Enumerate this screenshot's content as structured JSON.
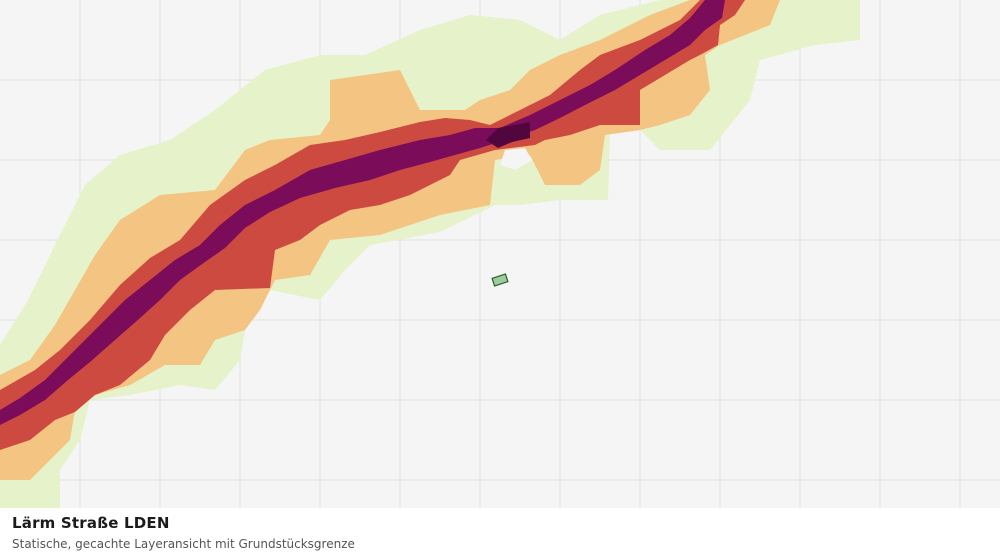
{
  "map": {
    "title": "Lärm Straße LDEN",
    "subtitle": "Statische, gecachte Layeransicht mit Grundstücksgrenze",
    "layer_type": "noise-map",
    "noise_classes": [
      {
        "key": "band-1",
        "color": "#e6f2c9"
      },
      {
        "key": "band-2",
        "color": "#f4c483"
      },
      {
        "key": "band-3",
        "color": "#cd4a41"
      },
      {
        "key": "band-4",
        "color": "#7a0c5a"
      },
      {
        "key": "band-5",
        "color": "#52063e"
      }
    ],
    "parcel": {
      "fill": "#9dcc9c",
      "stroke": "#2d5d2d"
    },
    "grid": {
      "color": "#dfe3df",
      "visible": true
    }
  }
}
